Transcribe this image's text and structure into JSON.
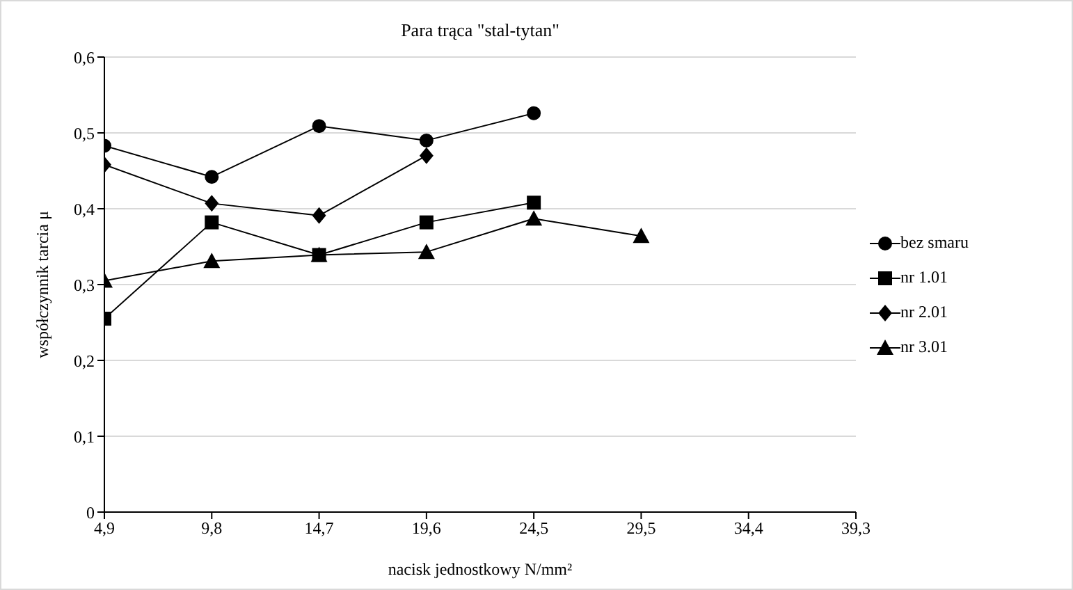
{
  "chart_data": {
    "type": "line",
    "title": "Para trąca \"stal-tytan\"",
    "xlabel": "nacisk jednostkowy N/mm²",
    "ylabel": "współczynnik tarcia μ",
    "categories": [
      "4,9",
      "9,8",
      "14,7",
      "19,6",
      "24,5",
      "29,5",
      "34,4",
      "39,3"
    ],
    "series": [
      {
        "name": "bez smaru",
        "color": "#000000",
        "marker": "circle",
        "values": [
          0.483,
          0.442,
          0.509,
          0.49,
          0.526,
          null,
          null,
          null
        ]
      },
      {
        "name": "nr 1.01",
        "color": "#000000",
        "marker": "square",
        "values": [
          0.255,
          0.382,
          0.339,
          0.382,
          0.408,
          null,
          null,
          null
        ]
      },
      {
        "name": "nr 2.01",
        "color": "#000000",
        "marker": "diamond",
        "values": [
          0.458,
          0.407,
          0.391,
          0.47,
          null,
          null,
          null,
          null
        ]
      },
      {
        "name": "nr 3.01",
        "color": "#000000",
        "marker": "triangle",
        "values": [
          0.305,
          0.331,
          0.339,
          0.343,
          0.387,
          0.364,
          null,
          null
        ]
      }
    ],
    "ylim": [
      0,
      0.6
    ],
    "yticks": [
      {
        "value": 0,
        "label": "0"
      },
      {
        "value": 0.1,
        "label": "0,1"
      },
      {
        "value": 0.2,
        "label": "0,2"
      },
      {
        "value": 0.3,
        "label": "0,3"
      },
      {
        "value": 0.4,
        "label": "0,4"
      },
      {
        "value": 0.5,
        "label": "0,5"
      },
      {
        "value": 0.6,
        "label": "0,6"
      }
    ],
    "grid": "y",
    "legend": "right",
    "line_style": "solid"
  }
}
